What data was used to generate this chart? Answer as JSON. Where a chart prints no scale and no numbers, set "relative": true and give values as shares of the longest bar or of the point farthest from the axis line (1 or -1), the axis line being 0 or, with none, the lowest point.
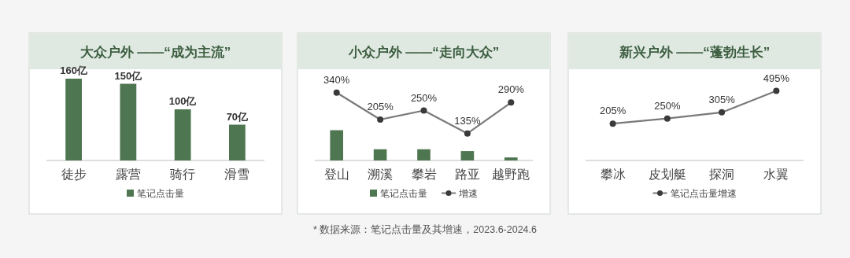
{
  "chart_data": [
    {
      "type": "bar",
      "title": "大众户外 ——“成为主流”",
      "categories": [
        "徒步",
        "露营",
        "骑行",
        "滑雪"
      ],
      "legend": "bottom",
      "series": [
        {
          "name": "笔记点击量",
          "color": "#4e7650",
          "values": [
            160,
            150,
            100,
            70
          ],
          "value_labels": [
            "160亿",
            "150亿",
            "100亿",
            "70亿"
          ]
        }
      ]
    },
    {
      "type": "bar",
      "title": "小众户外 ——“走向大众”",
      "categories": [
        null,
        null,
        null,
        null,
        null
      ],
      "relative": true,
      "legend": "bottom",
      "series": [
        {
          "name": "笔记点击量",
          "color": "#4e7650",
          "values": [
            1,
            0.37,
            0.37,
            0.31,
            0.1
          ]
        }
      ]
    },
    {
      "type": "line",
      "categories": [
        "登山",
        "溯溪",
        "攀岩",
        "路亚",
        "越野跑"
      ],
      "legend": "bottom",
      "marker": "circle",
      "series": [
        {
          "name": "增速",
          "color": "#7a7a7a",
          "values": [
            340,
            205,
            250,
            135,
            290
          ],
          "value_labels": [
            "340%",
            "205%",
            "250%",
            "135%",
            "290%"
          ]
        }
      ],
      "annotations": [
        "* 数据来源：笔记点击量及其增速，2023.6-2024.6"
      ]
    },
    {
      "type": "line",
      "title": "新兴户外 ——“蓬勃生长”",
      "categories": [
        "攀冰",
        "皮划艇",
        "探洞",
        "水翼"
      ],
      "legend": "bottom",
      "marker": "circle",
      "series": [
        {
          "name": "笔记点击量增速",
          "color": "#7a7a7a",
          "values": [
            205,
            250,
            305,
            495
          ],
          "value_labels": [
            "205%",
            "250%",
            "305%",
            "495%"
          ]
        }
      ]
    }
  ]
}
